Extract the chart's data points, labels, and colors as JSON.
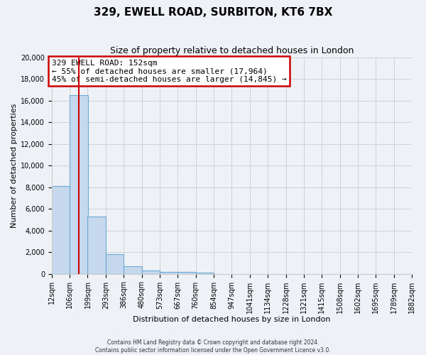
{
  "title": "329, EWELL ROAD, SURBITON, KT6 7BX",
  "subtitle": "Size of property relative to detached houses in London",
  "xlabel": "Distribution of detached houses by size in London",
  "ylabel": "Number of detached properties",
  "bin_labels": [
    "12sqm",
    "106sqm",
    "199sqm",
    "293sqm",
    "386sqm",
    "480sqm",
    "573sqm",
    "667sqm",
    "760sqm",
    "854sqm",
    "947sqm",
    "1041sqm",
    "1134sqm",
    "1228sqm",
    "1321sqm",
    "1415sqm",
    "1508sqm",
    "1602sqm",
    "1695sqm",
    "1789sqm",
    "1882sqm"
  ],
  "bin_edges": [
    12,
    106,
    199,
    293,
    386,
    480,
    573,
    667,
    760,
    854,
    947,
    1041,
    1134,
    1228,
    1321,
    1415,
    1508,
    1602,
    1695,
    1789,
    1882
  ],
  "bar_heights": [
    8100,
    16500,
    5300,
    1800,
    700,
    300,
    200,
    150,
    100,
    0,
    0,
    0,
    0,
    0,
    0,
    0,
    0,
    0,
    0,
    0
  ],
  "bar_color": "#c5d8ee",
  "bar_edge_color": "#6aaad4",
  "property_line_x": 152,
  "property_line_color": "#cc0000",
  "ylim": [
    0,
    20000
  ],
  "yticks": [
    0,
    2000,
    4000,
    6000,
    8000,
    10000,
    12000,
    14000,
    16000,
    18000,
    20000
  ],
  "annotation_box_text": "329 EWELL ROAD: 152sqm\n← 55% of detached houses are smaller (17,964)\n45% of semi-detached houses are larger (14,845) →",
  "annotation_box_color": "#cc0000",
  "annotation_box_bg": "#ffffff",
  "footer_line1": "Contains HM Land Registry data © Crown copyright and database right 2024.",
  "footer_line2": "Contains public sector information licensed under the Open Government Licence v3.0.",
  "grid_color": "#cccccc",
  "bg_color": "#eef2f7",
  "title_fontsize": 11,
  "subtitle_fontsize": 9,
  "xlabel_fontsize": 8,
  "ylabel_fontsize": 8,
  "tick_fontsize": 7,
  "annot_fontsize": 8
}
